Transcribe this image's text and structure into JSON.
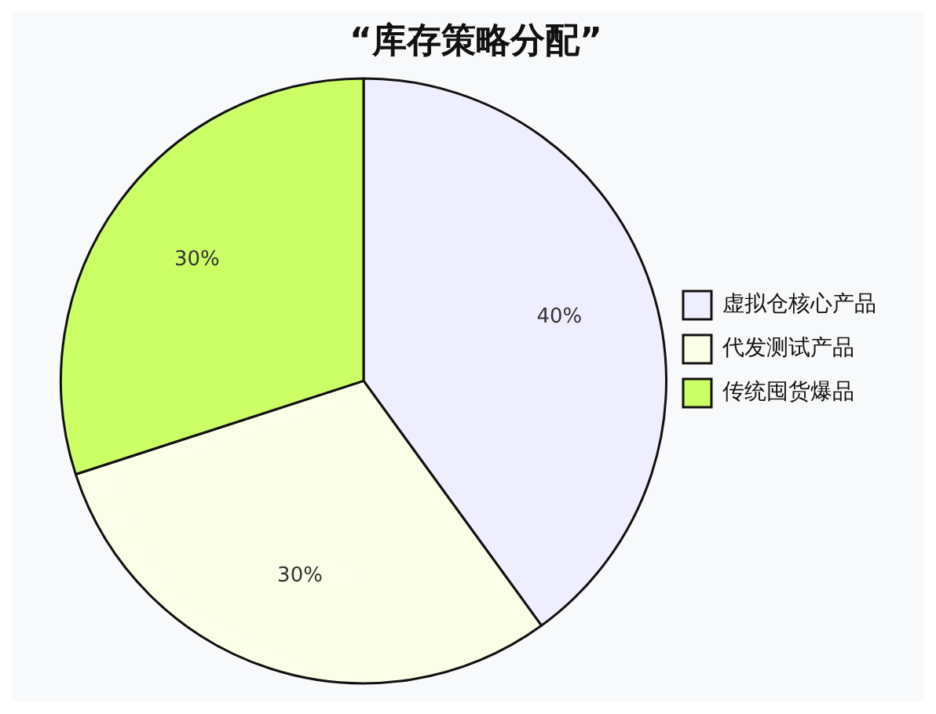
{
  "chart_data": {
    "type": "pie",
    "title": "“库存策略分配”",
    "categories": [
      "虚拟仓核心产品",
      "代发测试产品",
      "传统囤货爆品"
    ],
    "values": [
      40,
      30,
      30
    ],
    "value_labels": [
      "40%",
      "30%",
      "30%"
    ],
    "colors": [
      "#eeeeff",
      "#fbffe8",
      "#ccff66"
    ],
    "legend": "right"
  }
}
